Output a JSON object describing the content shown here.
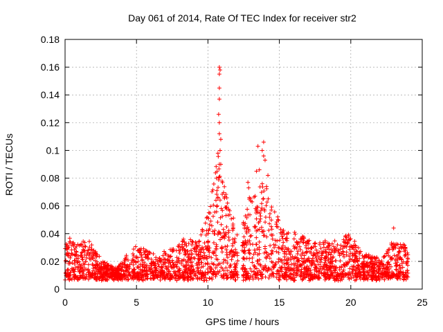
{
  "chart_data": {
    "type": "scatter",
    "title": "Day 061 of 2014, Rate Of TEC Index for receiver str2",
    "xlabel": "GPS time / hours",
    "ylabel": "ROTI / TECUs",
    "xlim": [
      0,
      25
    ],
    "ylim": [
      0,
      0.18
    ],
    "xticks": [
      0,
      5,
      10,
      15,
      20,
      25
    ],
    "xtick_labels": [
      "0",
      "5",
      "10",
      "15",
      "20",
      "25"
    ],
    "yticks": [
      0,
      0.02,
      0.04,
      0.06,
      0.08,
      0.1,
      0.12,
      0.14,
      0.16,
      0.18
    ],
    "ytick_labels": [
      "0",
      "0.02",
      "0.04",
      "0.06",
      "0.08",
      "0.1",
      "0.12",
      "0.14",
      "0.16",
      "0.18"
    ],
    "grid": true,
    "marker": "plus",
    "point_color": "#ff0000",
    "series": [
      {
        "name": "ROTI",
        "envelope_x": [
          0,
          0.5,
          1,
          1.5,
          2,
          2.5,
          3,
          3.5,
          4,
          4.5,
          5,
          5.5,
          6,
          6.5,
          7,
          7.5,
          8,
          8.5,
          9,
          9.5,
          10,
          10.5,
          10.8,
          11,
          11.5,
          12,
          12.2,
          12.5,
          13,
          13.5,
          14,
          14.5,
          15,
          15.5,
          16,
          16.5,
          17,
          17.5,
          18,
          18.5,
          19,
          19.5,
          20,
          20.5,
          21,
          21.5,
          22,
          22.5,
          23,
          23.5,
          24
        ],
        "envelope_y": [
          0.035,
          0.04,
          0.032,
          0.038,
          0.03,
          0.022,
          0.018,
          0.016,
          0.02,
          0.028,
          0.032,
          0.03,
          0.028,
          0.022,
          0.028,
          0.03,
          0.034,
          0.038,
          0.035,
          0.04,
          0.055,
          0.085,
          0.1,
          0.08,
          0.06,
          0.045,
          0.03,
          0.05,
          0.07,
          0.075,
          0.08,
          0.06,
          0.05,
          0.04,
          0.042,
          0.04,
          0.036,
          0.034,
          0.036,
          0.034,
          0.036,
          0.038,
          0.04,
          0.032,
          0.026,
          0.024,
          0.026,
          0.028,
          0.036,
          0.034,
          0.03
        ],
        "spikes": [
          {
            "x": 10.8,
            "y": 0.16
          },
          {
            "x": 10.85,
            "y": 0.158
          },
          {
            "x": 10.8,
            "y": 0.155
          },
          {
            "x": 10.8,
            "y": 0.145
          },
          {
            "x": 10.8,
            "y": 0.137
          },
          {
            "x": 10.75,
            "y": 0.126
          },
          {
            "x": 10.8,
            "y": 0.12
          },
          {
            "x": 10.8,
            "y": 0.112
          },
          {
            "x": 10.9,
            "y": 0.108
          },
          {
            "x": 10.85,
            "y": 0.1
          },
          {
            "x": 10.7,
            "y": 0.098
          },
          {
            "x": 10.8,
            "y": 0.09
          },
          {
            "x": 10.9,
            "y": 0.09
          },
          {
            "x": 10.6,
            "y": 0.08
          },
          {
            "x": 13.5,
            "y": 0.103
          },
          {
            "x": 13.9,
            "y": 0.106
          },
          {
            "x": 13.8,
            "y": 0.1
          },
          {
            "x": 13.9,
            "y": 0.096
          },
          {
            "x": 14.0,
            "y": 0.093
          },
          {
            "x": 13.6,
            "y": 0.086
          },
          {
            "x": 13.4,
            "y": 0.085
          },
          {
            "x": 14.2,
            "y": 0.082
          },
          {
            "x": 13.8,
            "y": 0.076
          },
          {
            "x": 14.1,
            "y": 0.074
          },
          {
            "x": 12.8,
            "y": 0.077
          },
          {
            "x": 12.85,
            "y": 0.073
          },
          {
            "x": 12.9,
            "y": 0.066
          },
          {
            "x": 13.3,
            "y": 0.067
          },
          {
            "x": 23.0,
            "y": 0.044
          }
        ],
        "gap": [
          12.1,
          12.4
        ]
      }
    ]
  }
}
